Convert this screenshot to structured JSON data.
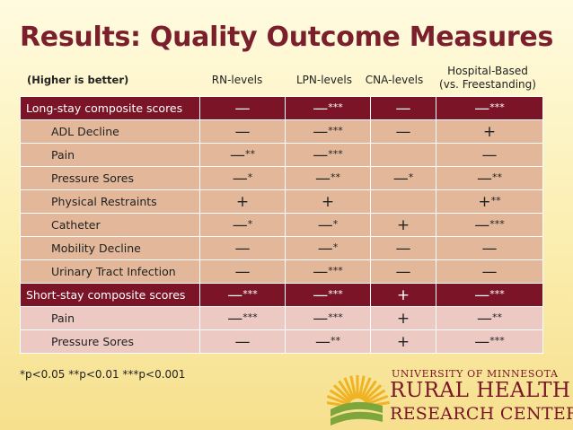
{
  "slide": {
    "title": "Results: Quality Outcome Measures",
    "note": "(Higher is better)",
    "columns": [
      "RN-levels",
      "LPN-levels",
      "CNA-levels"
    ],
    "hospital_col_line1": "Hospital-Based",
    "hospital_col_line2": "(vs. Freestanding)"
  },
  "rows": [
    {
      "label": "Long-stay composite scores",
      "group": true,
      "section": "long",
      "cells": [
        {
          "s": "—",
          "t": ""
        },
        {
          "s": "—",
          "t": "***"
        },
        {
          "s": "—",
          "t": ""
        },
        {
          "s": "—",
          "t": "***"
        }
      ]
    },
    {
      "label": "ADL Decline",
      "group": false,
      "section": "long",
      "cells": [
        {
          "s": "—",
          "t": ""
        },
        {
          "s": "—",
          "t": "***"
        },
        {
          "s": "—",
          "t": ""
        },
        {
          "s": "+",
          "t": ""
        }
      ]
    },
    {
      "label": "Pain",
      "group": false,
      "section": "long",
      "cells": [
        {
          "s": "—",
          "t": "**"
        },
        {
          "s": "—",
          "t": "***"
        },
        {
          "s": "",
          "t": ""
        },
        {
          "s": "—",
          "t": ""
        }
      ]
    },
    {
      "label": "Pressure Sores",
      "group": false,
      "section": "long",
      "cells": [
        {
          "s": "—",
          "t": "*"
        },
        {
          "s": "—",
          "t": "**"
        },
        {
          "s": "—",
          "t": "*"
        },
        {
          "s": "—",
          "t": "**"
        }
      ]
    },
    {
      "label": "Physical Restraints",
      "group": false,
      "section": "long",
      "cells": [
        {
          "s": "+",
          "t": ""
        },
        {
          "s": "+",
          "t": ""
        },
        {
          "s": "",
          "t": ""
        },
        {
          "s": "+",
          "t": "**"
        }
      ]
    },
    {
      "label": "Catheter",
      "group": false,
      "section": "long",
      "cells": [
        {
          "s": "—",
          "t": "*"
        },
        {
          "s": "—",
          "t": "*"
        },
        {
          "s": "+",
          "t": ""
        },
        {
          "s": "—",
          "t": "***"
        }
      ]
    },
    {
      "label": "Mobility Decline",
      "group": false,
      "section": "long",
      "cells": [
        {
          "s": "—",
          "t": ""
        },
        {
          "s": "—",
          "t": "*"
        },
        {
          "s": "—",
          "t": ""
        },
        {
          "s": "—",
          "t": ""
        }
      ]
    },
    {
      "label": "Urinary Tract Infection",
      "group": false,
      "section": "long",
      "cells": [
        {
          "s": "—",
          "t": ""
        },
        {
          "s": "—",
          "t": "***"
        },
        {
          "s": "—",
          "t": ""
        },
        {
          "s": "—",
          "t": ""
        }
      ]
    },
    {
      "label": "Short-stay composite scores",
      "group": true,
      "section": "short",
      "cells": [
        {
          "s": "—",
          "t": "***"
        },
        {
          "s": "—",
          "t": "***"
        },
        {
          "s": "+",
          "t": ""
        },
        {
          "s": "—",
          "t": "***"
        }
      ]
    },
    {
      "label": "Pain",
      "group": false,
      "section": "short",
      "cells": [
        {
          "s": "—",
          "t": "***"
        },
        {
          "s": "—",
          "t": "***"
        },
        {
          "s": "+",
          "t": ""
        },
        {
          "s": "—",
          "t": "**"
        }
      ]
    },
    {
      "label": "Pressure Sores",
      "group": false,
      "section": "short",
      "cells": [
        {
          "s": "—",
          "t": ""
        },
        {
          "s": "—",
          "t": "**"
        },
        {
          "s": "+",
          "t": ""
        },
        {
          "s": "—",
          "t": "***"
        }
      ]
    }
  ],
  "footnote": "*p<0.05 **p<0.01 ***p<0.001",
  "logo": {
    "line1": "UNIVERSITY OF MINNESOTA",
    "line2": "RURAL HEALTH",
    "line3": "RESEARCH CENTER"
  },
  "colors": {
    "title": "#7a1f2b",
    "group_row": "#7a1426",
    "long_row": "#e3b89a",
    "short_row": "#ecc9c2",
    "logo_sun": "#f0b323",
    "logo_green": "#7ea63a"
  }
}
